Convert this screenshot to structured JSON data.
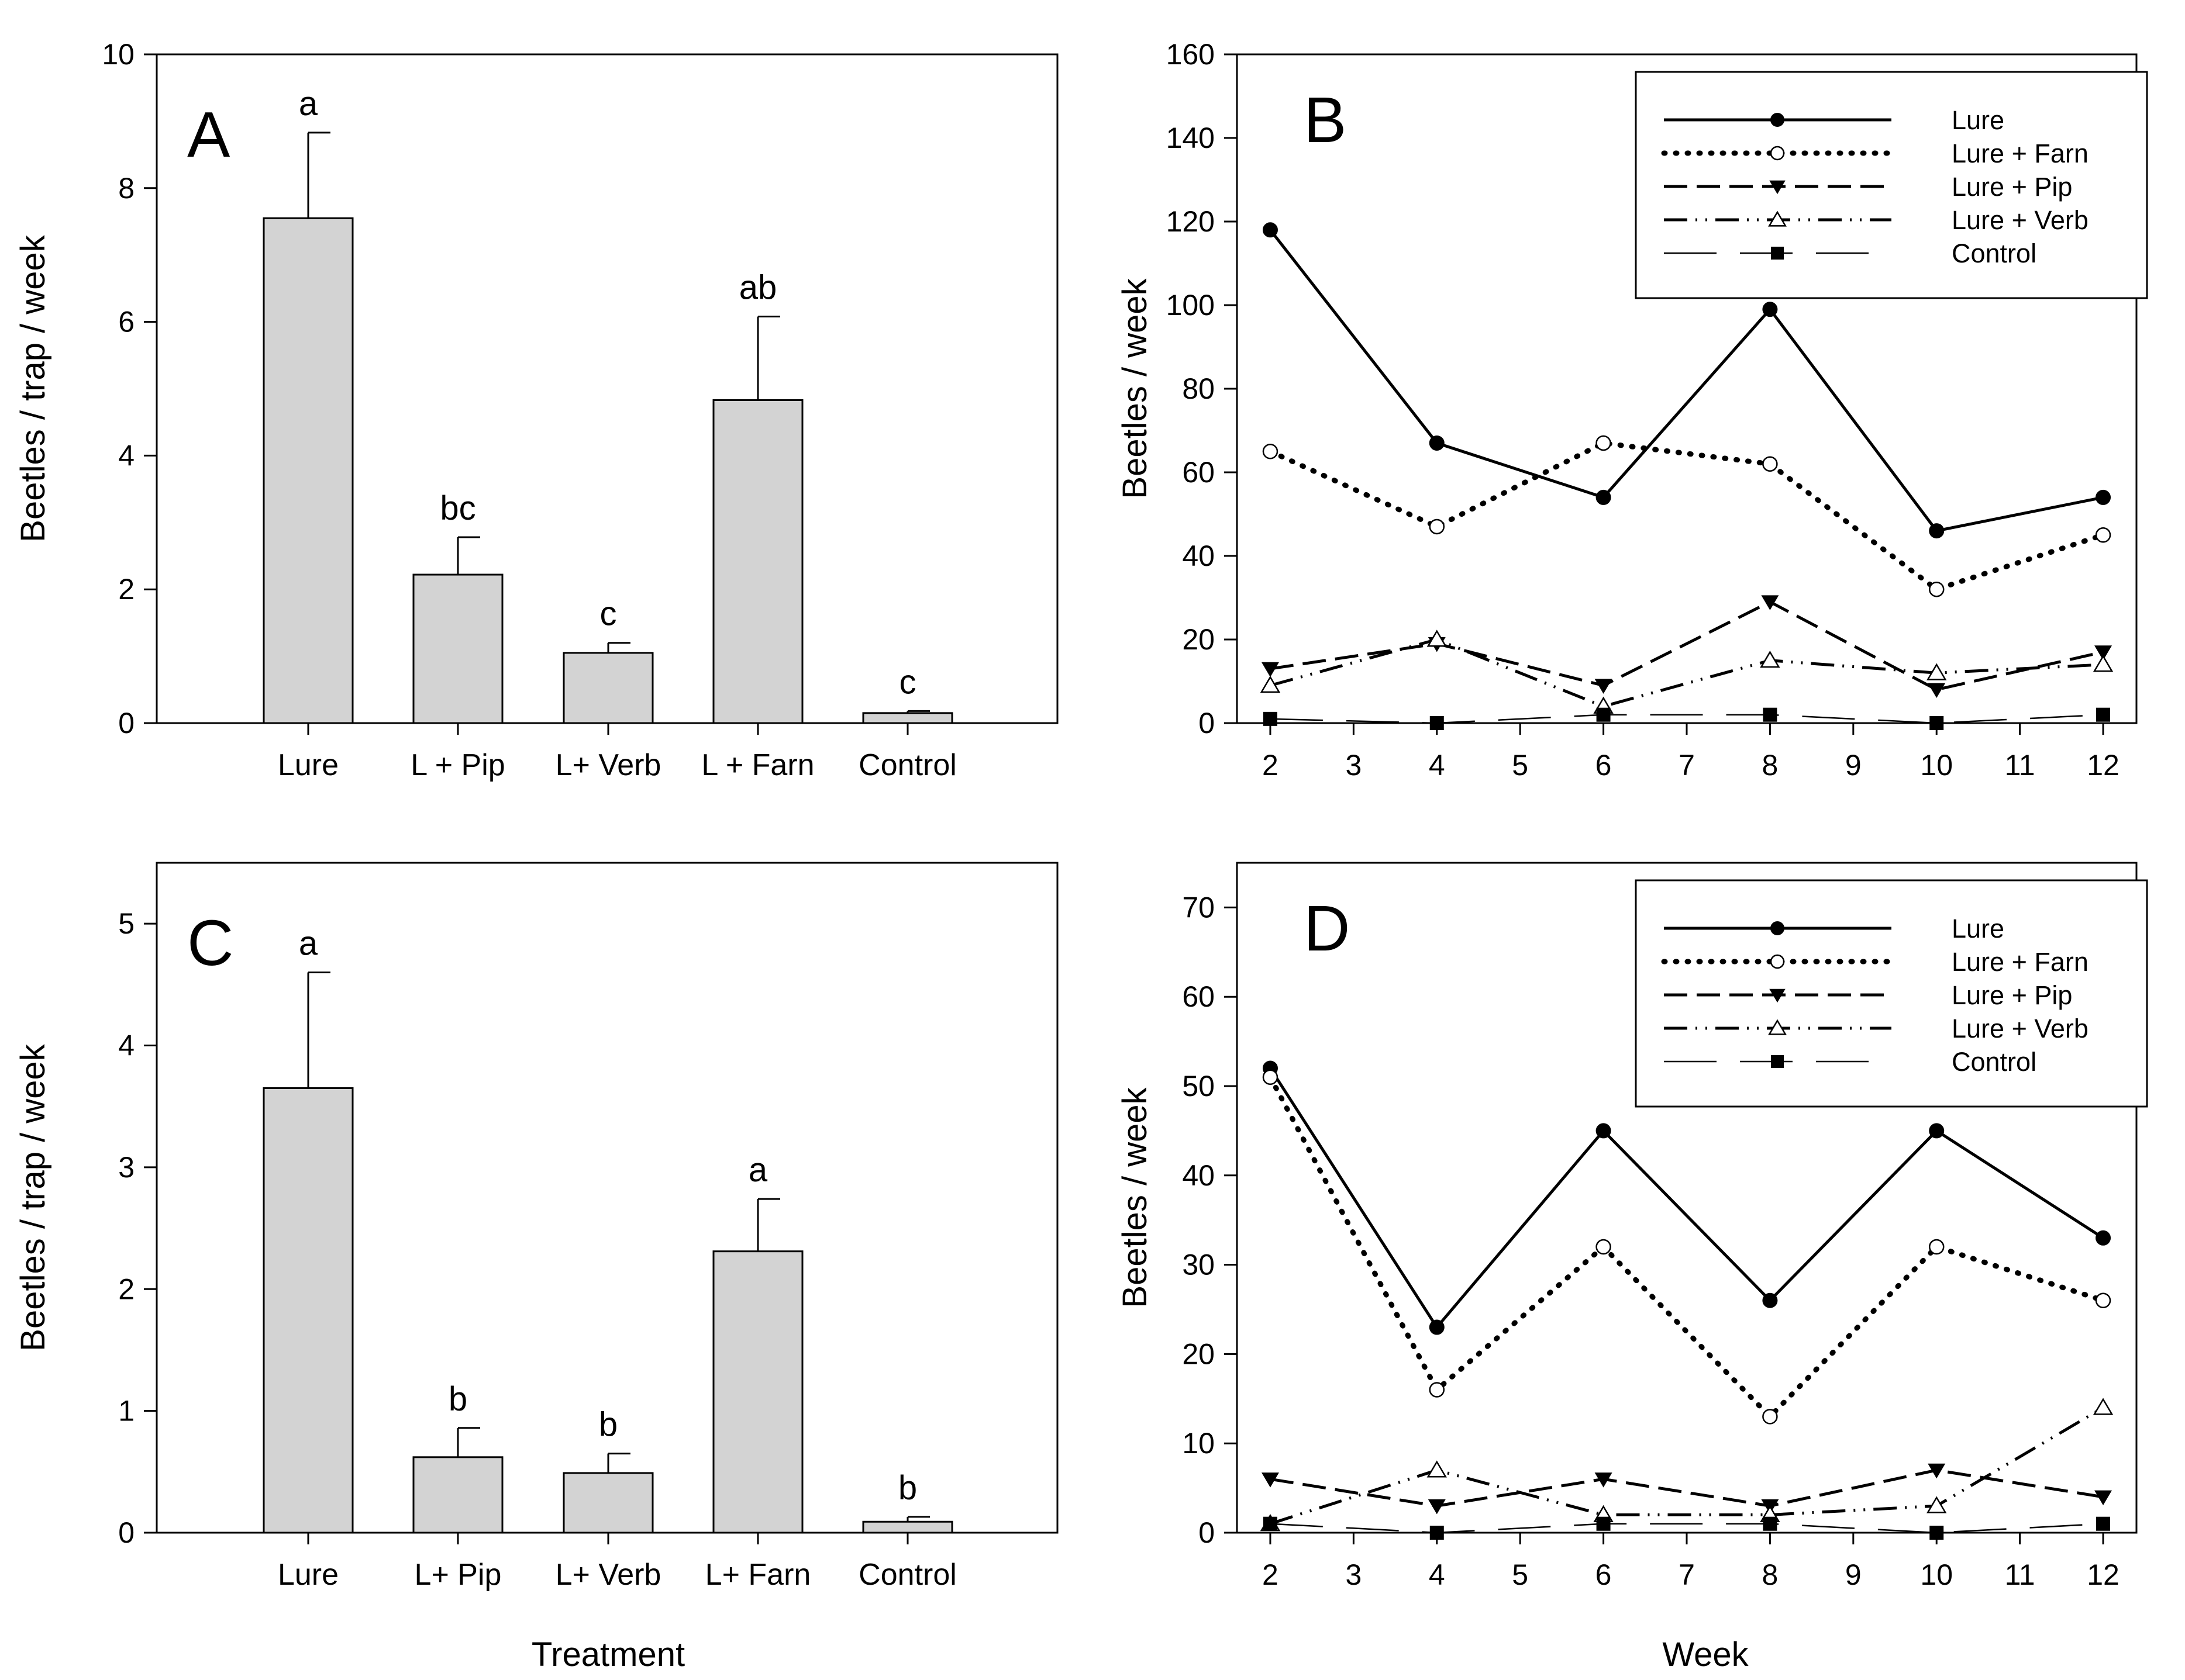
{
  "chart_data": [
    {
      "id": "A",
      "type": "bar",
      "panel_label": "A",
      "title": "",
      "xlabel": "",
      "ylabel": "Beetles / trap / week",
      "ylim": [
        0,
        10
      ],
      "yticks": [
        0,
        2,
        4,
        6,
        8,
        10
      ],
      "categories": [
        "Lure",
        "L + Pip",
        "L+ Verb",
        "L + Farn",
        "Control"
      ],
      "values": [
        7.55,
        2.22,
        1.05,
        4.83,
        0.15
      ],
      "errors": [
        1.28,
        0.56,
        0.15,
        1.25,
        0.03
      ],
      "significance": [
        "a",
        "bc",
        "c",
        "ab",
        "c"
      ]
    },
    {
      "id": "B",
      "type": "line",
      "panel_label": "B",
      "title": "",
      "xlabel": "",
      "ylabel": "Beetles / week",
      "xlim": [
        1.6,
        12.4
      ],
      "ylim": [
        0,
        160
      ],
      "xticks": [
        2,
        3,
        4,
        5,
        6,
        7,
        8,
        9,
        10,
        11,
        12
      ],
      "yticks": [
        0,
        20,
        40,
        60,
        80,
        100,
        120,
        140,
        160
      ],
      "x": [
        2,
        4,
        6,
        8,
        10,
        12
      ],
      "legend_position": "top-right",
      "series": [
        {
          "name": "Lure",
          "style": "solid",
          "marker": "filled-circle",
          "values": [
            118,
            67,
            54,
            99,
            46,
            54
          ]
        },
        {
          "name": "Lure + Farn",
          "style": "dotted",
          "marker": "open-circle",
          "values": [
            65,
            47,
            67,
            62,
            32,
            45
          ]
        },
        {
          "name": "Lure + Pip",
          "style": "dashed",
          "marker": "filled-triangle-down",
          "values": [
            13,
            19,
            9,
            29,
            8,
            17
          ]
        },
        {
          "name": "Lure + Verb",
          "style": "dash-dot-dot",
          "marker": "open-triangle-up",
          "values": [
            9,
            20,
            4,
            15,
            12,
            14
          ]
        },
        {
          "name": "Control",
          "style": "long-dash",
          "marker": "filled-square",
          "values": [
            1,
            0,
            2,
            2,
            0,
            2
          ]
        }
      ]
    },
    {
      "id": "C",
      "type": "bar",
      "panel_label": "C",
      "title": "",
      "xlabel": "Treatment",
      "ylabel": "Beetles / trap / week",
      "ylim": [
        0,
        5.5
      ],
      "yticks": [
        0,
        1,
        2,
        3,
        4,
        5
      ],
      "categories": [
        "Lure",
        "L+ Pip",
        "L+ Verb",
        "L+ Farn",
        "Control"
      ],
      "values": [
        3.65,
        0.62,
        0.49,
        2.31,
        0.09
      ],
      "errors": [
        0.95,
        0.24,
        0.16,
        0.43,
        0.04
      ],
      "significance": [
        "a",
        "b",
        "b",
        "a",
        "b"
      ]
    },
    {
      "id": "D",
      "type": "line",
      "panel_label": "D",
      "title": "",
      "xlabel": "Week",
      "ylabel": "Beetles / week",
      "xlim": [
        1.6,
        12.4
      ],
      "ylim": [
        0,
        75
      ],
      "xticks": [
        2,
        3,
        4,
        5,
        6,
        7,
        8,
        9,
        10,
        11,
        12
      ],
      "yticks": [
        0,
        10,
        20,
        30,
        40,
        50,
        60,
        70
      ],
      "x": [
        2,
        4,
        6,
        8,
        10,
        12
      ],
      "legend_position": "top-right",
      "series": [
        {
          "name": "Lure",
          "style": "solid",
          "marker": "filled-circle",
          "values": [
            52,
            23,
            45,
            26,
            45,
            33
          ]
        },
        {
          "name": "Lure + Farn",
          "style": "dotted",
          "marker": "open-circle",
          "values": [
            51,
            16,
            32,
            13,
            32,
            26
          ]
        },
        {
          "name": "Lure + Pip",
          "style": "dashed",
          "marker": "filled-triangle-down",
          "values": [
            6,
            3,
            6,
            3,
            7,
            4
          ]
        },
        {
          "name": "Lure + Verb",
          "style": "dash-dot-dot",
          "marker": "open-triangle-up",
          "values": [
            1,
            7,
            2,
            2,
            3,
            14
          ]
        },
        {
          "name": "Control",
          "style": "long-dash",
          "marker": "filled-square",
          "values": [
            1,
            0,
            1,
            1,
            0,
            1
          ]
        }
      ]
    }
  ]
}
